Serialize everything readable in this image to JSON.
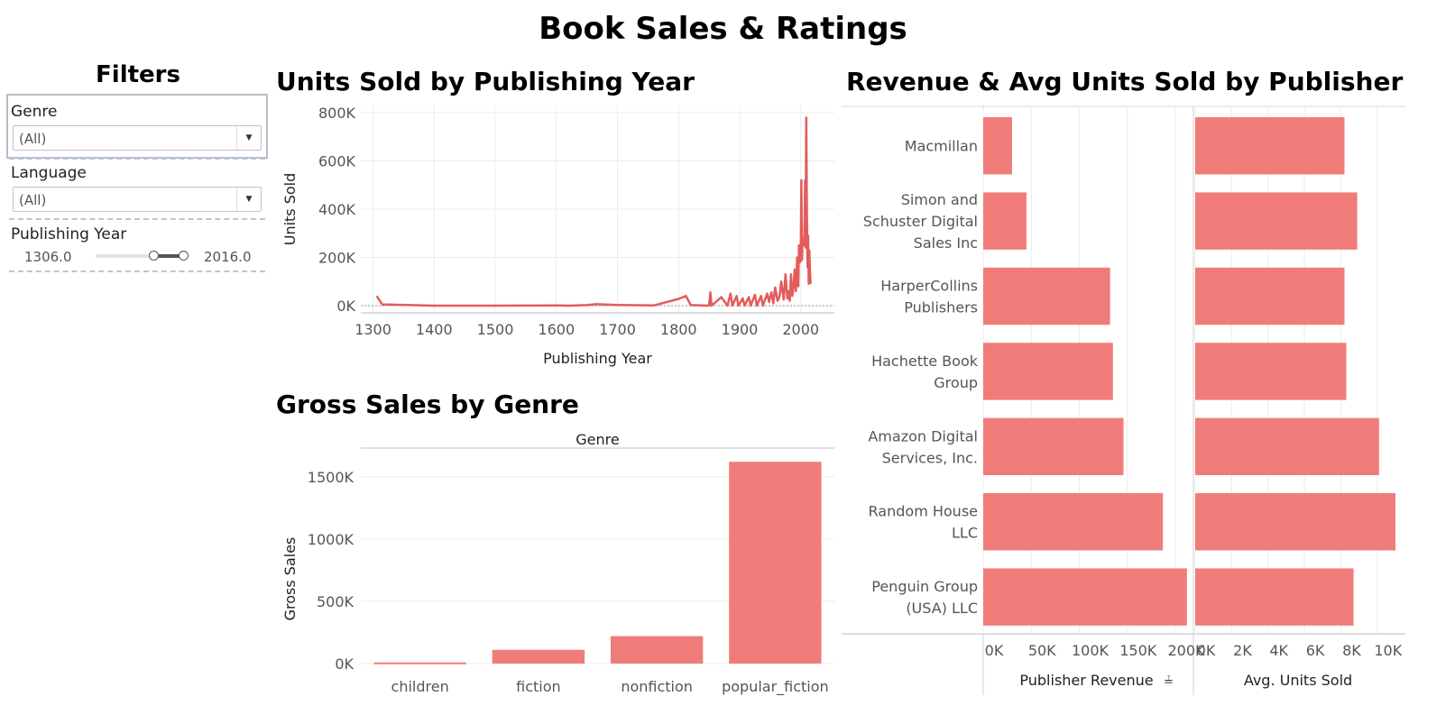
{
  "dashboard": {
    "title": "Book Sales & Ratings"
  },
  "filters": {
    "title": "Filters",
    "genre": {
      "label": "Genre",
      "value": "(All)"
    },
    "language": {
      "label": "Language",
      "value": "(All)"
    },
    "publishing_year": {
      "label": "Publishing Year",
      "min": "1306.0",
      "max": "2016.0"
    }
  },
  "line_sheet": {
    "title": "Units Sold by Publishing Year"
  },
  "bar_sheet": {
    "title": "Gross Sales by Genre"
  },
  "publisher_sheet": {
    "title": "Revenue & Avg Units Sold by Publisher"
  },
  "colors": {
    "mark": "#f07c79",
    "line": "#e35c5c",
    "grid": "#ececec",
    "text": "#555555"
  },
  "chart_data": [
    {
      "type": "line",
      "xlabel": "Publishing Year",
      "ylabel": "Units Sold",
      "xlim": [
        1280,
        2055
      ],
      "ylim": [
        -30000,
        830000
      ],
      "x_ticks": [
        1300,
        1400,
        1500,
        1600,
        1700,
        1800,
        1900,
        2000
      ],
      "y_ticks": [
        0,
        200000,
        400000,
        600000,
        800000
      ],
      "y_tick_labels": [
        "0K",
        "200K",
        "400K",
        "600K",
        "800K"
      ],
      "series": [
        {
          "x": [
            1306,
            1315,
            1400,
            1500,
            1600,
            1620,
            1650,
            1665,
            1700,
            1760,
            1800,
            1812,
            1820,
            1850,
            1852,
            1854,
            1870,
            1880,
            1885,
            1888,
            1895,
            1898,
            1905,
            1908,
            1915,
            1918,
            1925,
            1928,
            1935,
            1938,
            1945,
            1948,
            1952,
            1955,
            1958,
            1962,
            1965,
            1968,
            1972,
            1975,
            1978,
            1980,
            1982,
            1984,
            1986,
            1988,
            1990,
            1992,
            1994,
            1996,
            1997,
            1999,
            2000,
            2001,
            2002,
            2003,
            2004,
            2005,
            2006,
            2007,
            2008,
            2009,
            2010,
            2011,
            2012,
            2013,
            2014,
            2015,
            2016
          ],
          "y": [
            40000,
            5000,
            0,
            0,
            1000,
            0,
            2000,
            6000,
            3000,
            1000,
            28000,
            40000,
            2000,
            0,
            55000,
            0,
            35000,
            0,
            50000,
            0,
            40000,
            0,
            30000,
            0,
            35000,
            0,
            45000,
            0,
            40000,
            0,
            50000,
            15000,
            55000,
            10000,
            75000,
            20000,
            35000,
            100000,
            25000,
            130000,
            30000,
            60000,
            20000,
            130000,
            40000,
            75000,
            150000,
            60000,
            200000,
            80000,
            250000,
            180000,
            230000,
            520000,
            190000,
            280000,
            260000,
            250000,
            290000,
            520000,
            240000,
            780000,
            390000,
            160000,
            290000,
            90000,
            230000,
            150000,
            90000
          ]
        }
      ]
    },
    {
      "type": "bar",
      "title": "Genre",
      "ylabel": "Gross Sales",
      "categories": [
        "children",
        "fiction",
        "nonfiction",
        "popular_fiction"
      ],
      "values": [
        9000,
        110000,
        220000,
        1620000
      ],
      "ylim": [
        -80000,
        1730000
      ],
      "y_ticks": [
        0,
        500000,
        1000000,
        1500000
      ],
      "y_tick_labels": [
        "0K",
        "500K",
        "1000K",
        "1500K"
      ]
    },
    {
      "type": "bar",
      "orientation": "horizontal",
      "categories": [
        [
          "Macmillan"
        ],
        [
          "Simon and",
          "Schuster Digital",
          "Sales Inc"
        ],
        [
          "HarperCollins",
          "Publishers"
        ],
        [
          "Hachette Book",
          "Group"
        ],
        [
          "Amazon Digital",
          "Services,  Inc."
        ],
        [
          "Random House",
          "LLC"
        ],
        [
          "Penguin Group",
          "(USA) LLC"
        ]
      ],
      "series": [
        {
          "name": "Publisher Revenue",
          "values": [
            30000,
            45000,
            132000,
            135000,
            146000,
            187000,
            212000
          ],
          "ticks": [
            0,
            50000,
            100000,
            150000,
            200000
          ],
          "tick_labels": [
            "0K",
            "50K",
            "100K",
            "150K",
            "200K"
          ],
          "xlim": [
            0,
            215000
          ]
        },
        {
          "name": "Avg. Units Sold",
          "values": [
            8200,
            8900,
            8200,
            8300,
            10100,
            11000,
            8700
          ],
          "ticks": [
            0,
            2000,
            4000,
            6000,
            8000,
            10000
          ],
          "tick_labels": [
            "0K",
            "2K",
            "4K",
            "6K",
            "8K",
            "10K"
          ],
          "xlim": [
            0,
            11300
          ]
        }
      ]
    }
  ]
}
